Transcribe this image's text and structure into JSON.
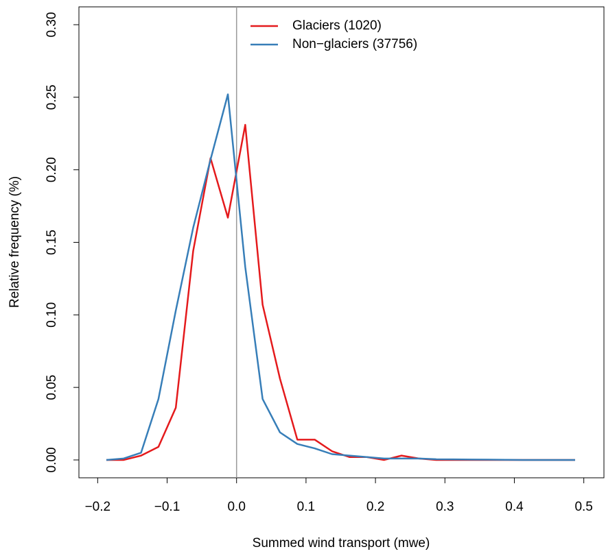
{
  "chart_data": {
    "type": "line",
    "x_label": "Summed wind transport (mwe)",
    "y_label": "Relative frequency (%)",
    "x": [
      -0.1875,
      -0.1625,
      -0.1375,
      -0.1125,
      -0.0875,
      -0.0625,
      -0.0375,
      -0.0125,
      0.0125,
      0.0375,
      0.0625,
      0.0875,
      0.1125,
      0.1375,
      0.1625,
      0.1875,
      0.2125,
      0.2375,
      0.2625,
      0.2875,
      0.3125,
      0.3375,
      0.3625,
      0.3875,
      0.4125,
      0.4375,
      0.4625,
      0.4875
    ],
    "series": [
      {
        "name": "Glaciers (1020)",
        "color": "#e41a1c",
        "values": [
          0.0,
          0.0,
          0.003,
          0.009,
          0.036,
          0.144,
          0.208,
          0.167,
          0.231,
          0.107,
          0.056,
          0.014,
          0.014,
          0.006,
          0.002,
          0.002,
          0.0,
          0.003,
          0.001,
          0.0,
          0.0,
          0.0,
          0.0,
          0.0,
          0.0,
          0.0,
          0.0,
          0.0
        ]
      },
      {
        "name": "Non−glaciers (37756)",
        "color": "#377eb8",
        "values": [
          0.0,
          0.001,
          0.005,
          0.042,
          0.103,
          0.16,
          0.207,
          0.252,
          0.133,
          0.042,
          0.019,
          0.011,
          0.008,
          0.004,
          0.003,
          0.002,
          0.001,
          0.001,
          0.001,
          0.0005,
          0.0004,
          0.0003,
          0.0002,
          0.0001,
          0.0,
          0.0,
          0.0,
          0.0
        ]
      }
    ],
    "xlim": [
      -0.227,
      0.529
    ],
    "ylim": [
      -0.0123,
      0.3123
    ],
    "xticks": [
      {
        "value": -0.2,
        "label": "−0.2"
      },
      {
        "value": -0.1,
        "label": "−0.1"
      },
      {
        "value": 0,
        "label": "0.0"
      },
      0.1,
      0.2,
      0.3,
      0.4,
      0.5
    ],
    "yticks": [
      {
        "value": 0,
        "label": "0.00"
      },
      0.05,
      {
        "value": 0.1,
        "label": "0.10"
      },
      0.15,
      {
        "value": 0.2,
        "label": "0.20"
      },
      0.25,
      {
        "value": 0.3,
        "label": "0.30"
      }
    ],
    "vline": 0,
    "vline_color": "#999999",
    "legend": "top",
    "grid": false
  }
}
